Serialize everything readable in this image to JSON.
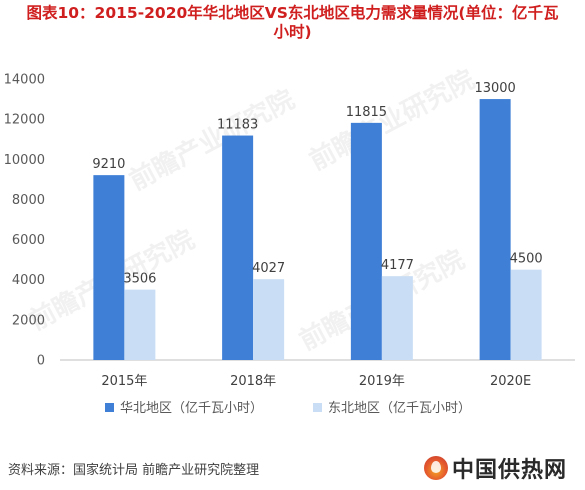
{
  "title_lines": [
    "图表10：2015-2020年华北地区VS东北地区电力需求量情况(单位：亿千瓦",
    "小时)"
  ],
  "source": {
    "label": "资料来源：",
    "text": "国家统计局 前瞻产业研究院整理"
  },
  "logo": {
    "text": "中国供热网"
  },
  "watermark": "前瞻产业研究院",
  "colors": {
    "series1": "#3f7fd6",
    "series2": "#c9def5",
    "title": "#d01f1f"
  },
  "chart_data": {
    "type": "bar",
    "title": "图表10：2015-2020年华北地区VS东北地区电力需求量情况(单位：亿千瓦小时)",
    "categories": [
      "2015年",
      "2018年",
      "2019年",
      "2020E"
    ],
    "series": [
      {
        "name": "华北地区（亿千瓦小时）",
        "values": [
          9210,
          11183,
          11815,
          13000
        ]
      },
      {
        "name": "东北地区（亿千瓦小时）",
        "values": [
          3506,
          4027,
          4177,
          4500
        ]
      }
    ],
    "yticks": [
      0,
      2000,
      4000,
      6000,
      8000,
      10000,
      12000,
      14000
    ],
    "ylim": [
      0,
      14000
    ],
    "grid": false,
    "legend_position": "bottom"
  }
}
